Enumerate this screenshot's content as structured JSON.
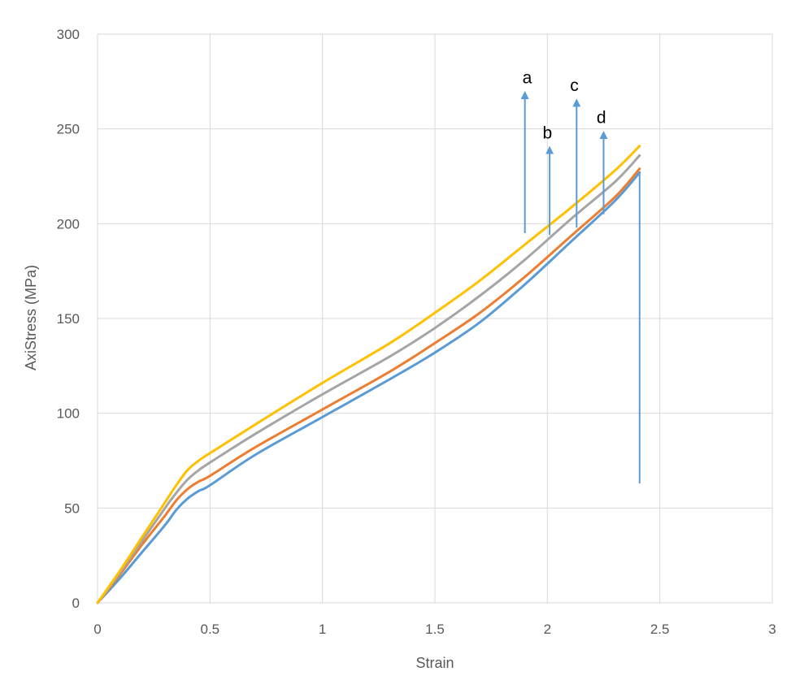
{
  "chart_data": {
    "type": "line",
    "title": "",
    "xlabel": "Strain",
    "ylabel": "AxiStress (MPa)",
    "xlim": [
      0,
      3
    ],
    "ylim": [
      0,
      300
    ],
    "xticks": [
      0,
      0.5,
      1,
      1.5,
      2,
      2.5,
      3
    ],
    "yticks": [
      0,
      50,
      100,
      150,
      200,
      250,
      300
    ],
    "xtick_labels": [
      "0",
      "0.5",
      "1",
      "1.5",
      "2",
      "2.5",
      "3"
    ],
    "ytick_labels": [
      "0",
      "50",
      "100",
      "150",
      "200",
      "250",
      "300"
    ],
    "grid": true,
    "legend": "none",
    "series": [
      {
        "color": "#5B9BD5",
        "x": [
          0,
          0.1,
          0.2,
          0.3,
          0.35,
          0.4,
          0.45,
          0.5,
          0.7,
          1.0,
          1.3,
          1.5,
          1.7,
          1.9,
          2.1,
          2.3,
          2.41
        ],
        "y": [
          0,
          13,
          27,
          41,
          49,
          55,
          59,
          62,
          78,
          98,
          118,
          132,
          148,
          168,
          190,
          212,
          227
        ],
        "drop_to": 63
      },
      {
        "color": "#ED7D31",
        "x": [
          0,
          0.1,
          0.2,
          0.3,
          0.35,
          0.4,
          0.45,
          0.5,
          0.7,
          1.0,
          1.3,
          1.5,
          1.7,
          1.9,
          2.1,
          2.3,
          2.41
        ],
        "y": [
          0,
          15,
          31,
          46,
          54,
          60,
          64,
          67,
          82,
          102,
          122,
          137,
          153,
          172,
          193,
          214,
          229
        ]
      },
      {
        "color": "#A5A5A5",
        "x": [
          0,
          0.1,
          0.2,
          0.3,
          0.35,
          0.4,
          0.45,
          0.5,
          0.7,
          1.0,
          1.3,
          1.5,
          1.7,
          1.9,
          2.1,
          2.3,
          2.41
        ],
        "y": [
          0,
          16,
          33,
          50,
          58,
          65,
          70,
          74,
          89,
          110,
          130,
          145,
          162,
          181,
          202,
          222,
          236
        ]
      },
      {
        "color": "#FFC000",
        "x": [
          0,
          0.1,
          0.2,
          0.3,
          0.35,
          0.4,
          0.45,
          0.5,
          0.7,
          1.0,
          1.3,
          1.5,
          1.7,
          1.9,
          2.1,
          2.3,
          2.41
        ],
        "y": [
          0,
          17,
          35,
          53,
          62,
          70,
          75,
          79,
          94,
          116,
          137,
          153,
          170,
          189,
          208,
          228,
          241
        ]
      }
    ],
    "annotations": [
      {
        "text": "a",
        "x": 1.9,
        "y_from": 195,
        "y_to": 270,
        "label_x": 1.91,
        "label_y": 274
      },
      {
        "text": "b",
        "x": 2.01,
        "y_from": 194,
        "y_to": 241,
        "label_x": 2.0,
        "label_y": 245
      },
      {
        "text": "c",
        "x": 2.13,
        "y_from": 198,
        "y_to": 266,
        "label_x": 2.12,
        "label_y": 270
      },
      {
        "text": "d",
        "x": 2.25,
        "y_from": 205,
        "y_to": 249,
        "label_x": 2.24,
        "label_y": 253
      }
    ],
    "annotation_color": "#5B9BD5"
  }
}
